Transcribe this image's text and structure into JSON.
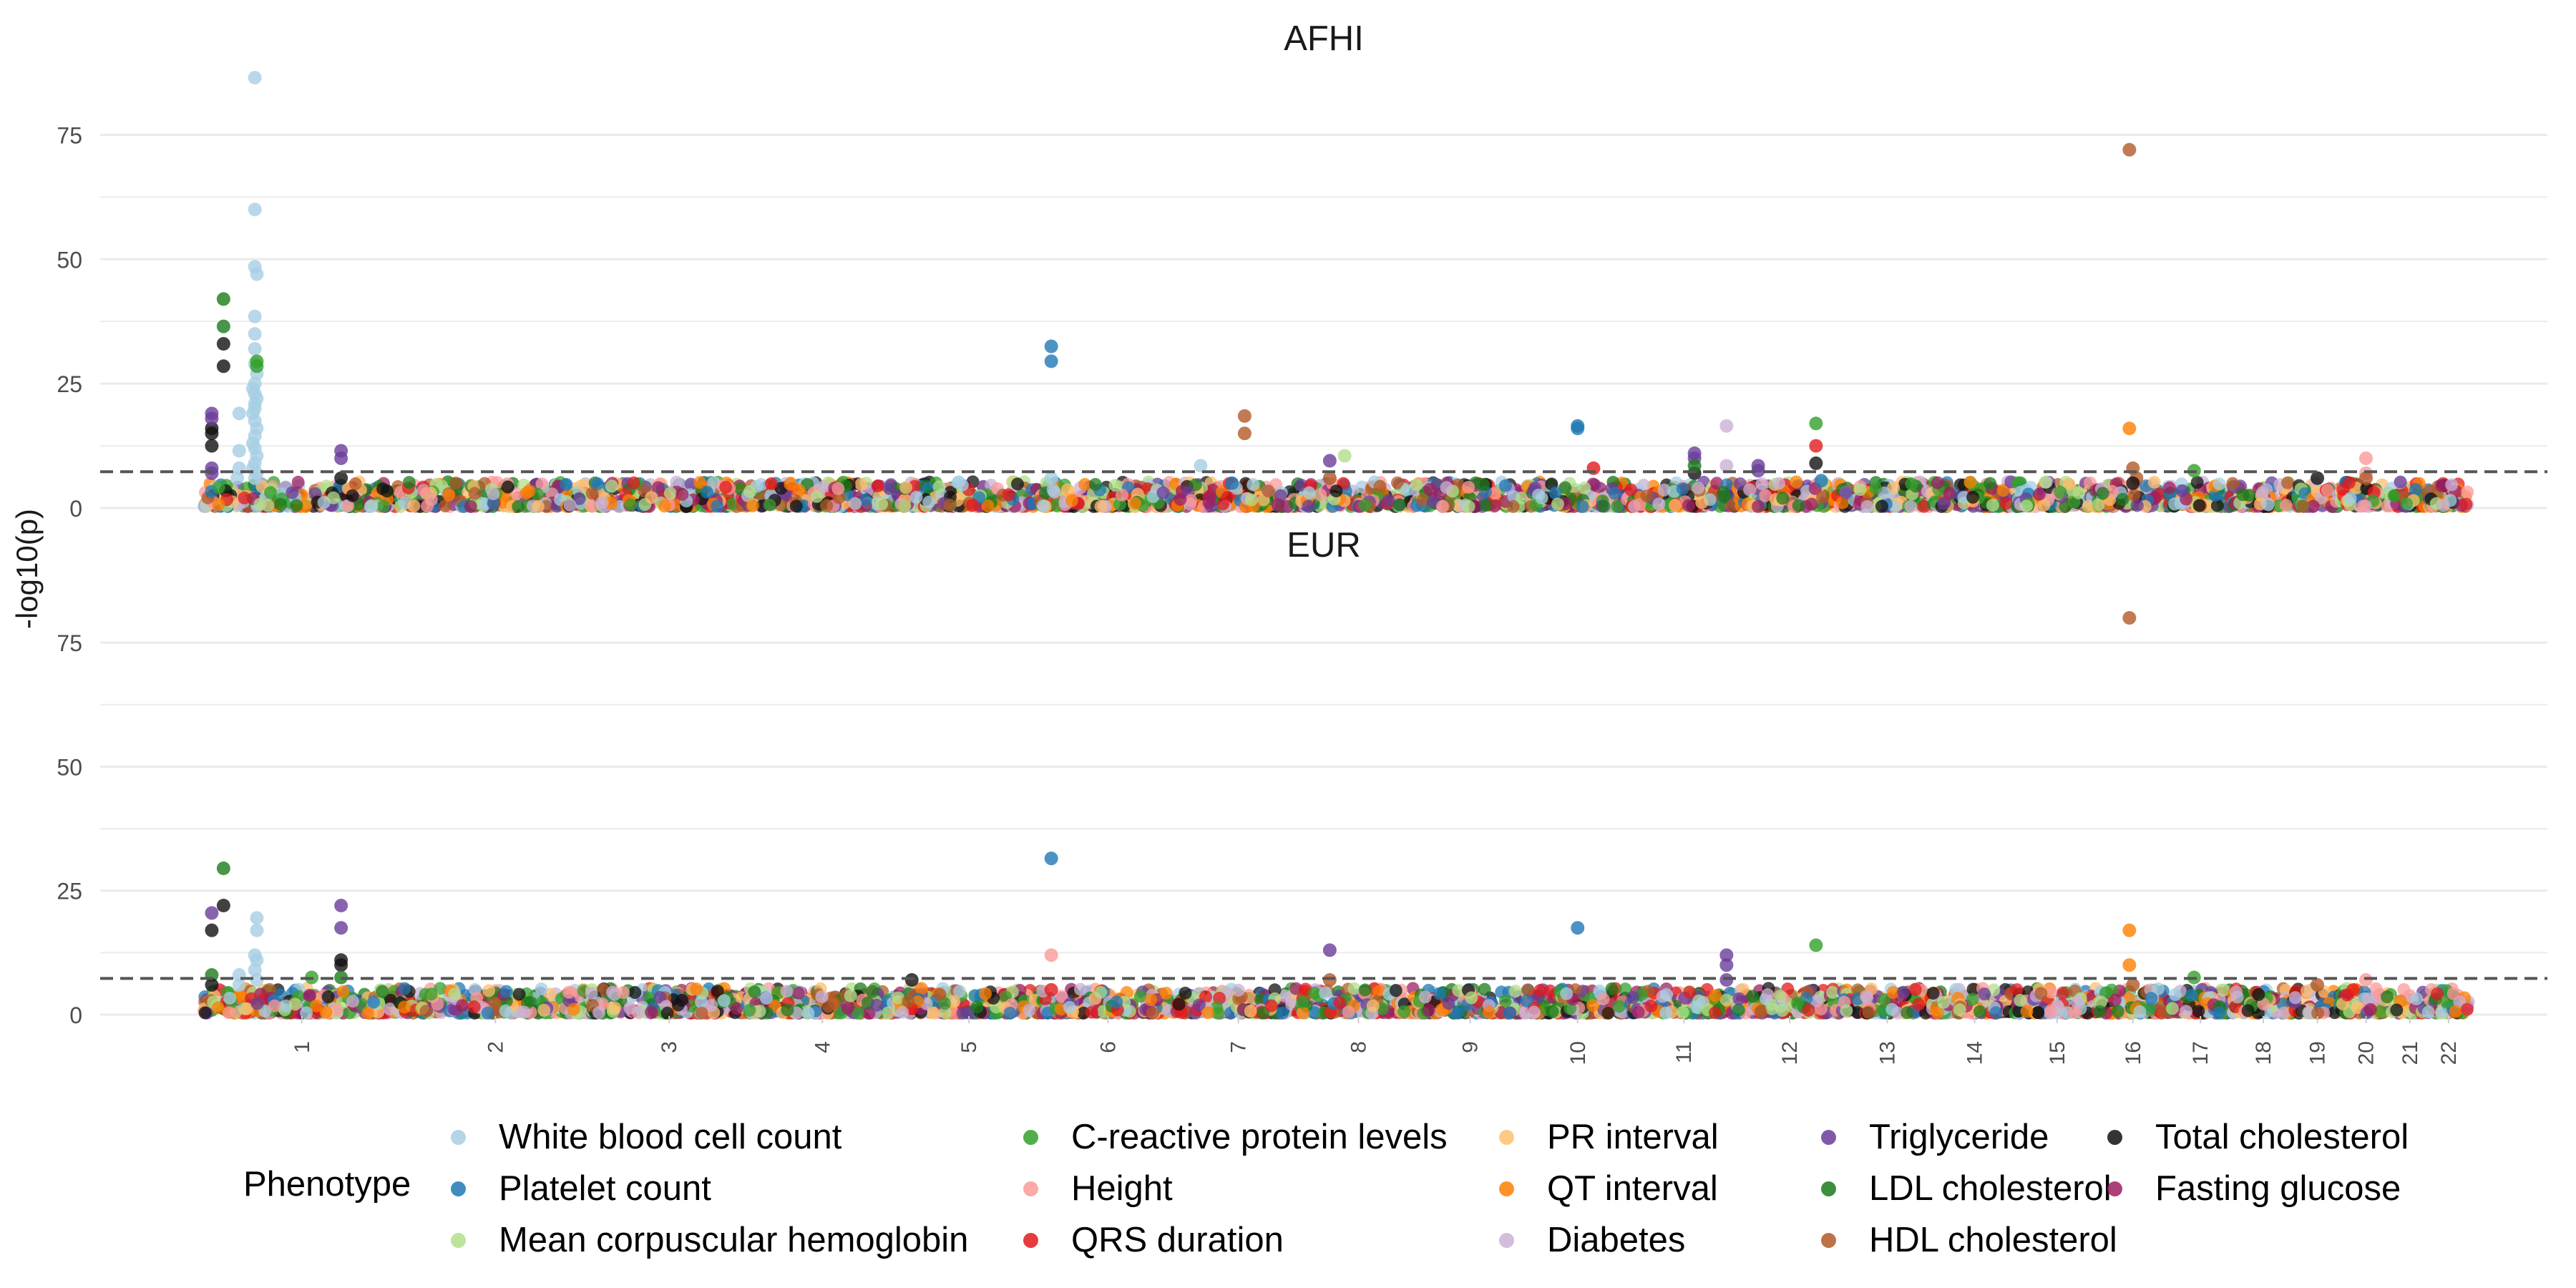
{
  "chart_data": {
    "type": "scatter",
    "ylabel": "-log10(p)",
    "panels": [
      "AFHI",
      "EUR"
    ],
    "y_ticks": [
      0,
      25,
      50,
      75
    ],
    "ylim": [
      0,
      87
    ],
    "significance_threshold": 7.3,
    "grid": true,
    "legend": {
      "title": "Phenotype",
      "placement": "bottom"
    },
    "chromosomes": [
      "1",
      "2",
      "3",
      "4",
      "5",
      "6",
      "7",
      "8",
      "9",
      "10",
      "11",
      "12",
      "13",
      "14",
      "15",
      "16",
      "17",
      "18",
      "19",
      "20",
      "21",
      "22"
    ],
    "chromosome_span": [
      [
        1,
        0.0,
        0.116
      ],
      [
        2,
        0.116,
        0.215
      ],
      [
        3,
        0.215,
        0.282
      ],
      [
        4,
        0.282,
        0.347
      ],
      [
        5,
        0.347,
        0.412
      ],
      [
        6,
        0.412,
        0.474
      ],
      [
        7,
        0.474,
        0.528
      ],
      [
        8,
        0.528,
        0.582
      ],
      [
        9,
        0.582,
        0.625
      ],
      [
        10,
        0.625,
        0.677
      ],
      [
        11,
        0.677,
        0.723
      ],
      [
        12,
        0.723,
        0.773
      ],
      [
        13,
        0.773,
        0.82
      ],
      [
        14,
        0.82,
        0.86
      ],
      [
        15,
        0.86,
        0.896
      ],
      [
        16,
        0.896,
        0.925
      ],
      [
        17,
        0.925,
        0.956
      ],
      [
        18,
        0.956,
        0.977
      ],
      [
        19,
        0.977,
        0.993
      ],
      [
        20,
        0.993,
        1.0
      ],
      [
        21,
        1.0,
        1.0
      ],
      [
        22,
        1.0,
        1.0
      ]
    ],
    "phenotypes": [
      {
        "name": "White blood cell count",
        "color": "#a6cee3"
      },
      {
        "name": "Platelet count",
        "color": "#1f78b4"
      },
      {
        "name": "Mean corpuscular hemoglobin",
        "color": "#b2df8a"
      },
      {
        "name": "C-reactive protein levels",
        "color": "#33a02c"
      },
      {
        "name": "Height",
        "color": "#fb9a99"
      },
      {
        "name": "QRS duration",
        "color": "#e31a1c"
      },
      {
        "name": "PR interval",
        "color": "#fdbf6f"
      },
      {
        "name": "QT interval",
        "color": "#ff7f00"
      },
      {
        "name": "Diabetes",
        "color": "#cab2d6"
      },
      {
        "name": "Triglyceride",
        "color": "#6a3d9a"
      },
      {
        "name": "LDL cholesterol",
        "color": "#1b7a1b"
      },
      {
        "name": "HDL cholesterol",
        "color": "#b15928"
      },
      {
        "name": "Total cholesterol",
        "color": "#111111"
      },
      {
        "name": "Fasting glucose",
        "color": "#9e1f63"
      }
    ],
    "series": [
      {
        "panel": "AFHI",
        "points": [
          [
            1,
            0.26,
            86.5,
            0
          ],
          [
            1,
            0.26,
            60,
            0
          ],
          [
            1,
            0.26,
            48.5,
            0
          ],
          [
            1,
            0.27,
            47,
            0
          ],
          [
            1,
            0.26,
            38.5,
            0
          ],
          [
            1,
            0.26,
            35,
            0
          ],
          [
            1,
            0.26,
            32,
            0
          ],
          [
            1,
            0.26,
            29,
            0
          ],
          [
            1,
            0.27,
            27,
            0
          ],
          [
            1,
            0.26,
            25,
            0
          ],
          [
            1,
            0.25,
            24,
            0
          ],
          [
            1,
            0.26,
            23,
            0
          ],
          [
            1,
            0.27,
            22,
            0
          ],
          [
            1,
            0.26,
            21,
            0
          ],
          [
            1,
            0.26,
            20,
            0
          ],
          [
            1,
            0.25,
            19,
            0
          ],
          [
            1,
            0.18,
            19,
            0
          ],
          [
            1,
            0.26,
            17.5,
            0
          ],
          [
            1,
            0.27,
            16,
            0
          ],
          [
            1,
            0.26,
            14.5,
            0
          ],
          [
            1,
            0.25,
            13,
            0
          ],
          [
            1,
            0.26,
            12,
            0
          ],
          [
            1,
            0.18,
            11.5,
            0
          ],
          [
            1,
            0.27,
            10.5,
            0
          ],
          [
            1,
            0.26,
            9,
            0
          ],
          [
            1,
            0.25,
            8,
            0
          ],
          [
            1,
            0.27,
            7,
            0
          ],
          [
            1,
            0.26,
            6,
            0
          ],
          [
            1,
            0.17,
            6,
            0
          ],
          [
            1,
            0.18,
            8,
            0
          ],
          [
            1,
            0.1,
            42,
            10
          ],
          [
            1,
            0.1,
            36.5,
            10
          ],
          [
            1,
            0.27,
            29.5,
            3
          ],
          [
            1,
            0.27,
            28.5,
            3
          ],
          [
            1,
            0.1,
            33,
            12
          ],
          [
            1,
            0.1,
            28.5,
            12
          ],
          [
            1,
            0.04,
            16,
            12
          ],
          [
            1,
            0.04,
            15,
            12
          ],
          [
            1,
            0.04,
            12.5,
            12
          ],
          [
            1,
            0.04,
            19,
            9
          ],
          [
            1,
            0.04,
            18,
            9
          ],
          [
            1,
            0.04,
            8,
            9
          ],
          [
            1,
            0.04,
            7,
            9
          ],
          [
            1,
            0.7,
            11.5,
            9
          ],
          [
            1,
            0.7,
            10,
            9
          ],
          [
            1,
            0.7,
            6,
            12
          ],
          [
            6,
            0.08,
            32.5,
            1
          ],
          [
            6,
            0.08,
            29.5,
            1
          ],
          [
            6,
            0.08,
            6,
            0
          ],
          [
            7,
            0.2,
            8.5,
            0
          ],
          [
            7,
            0.55,
            18.5,
            11
          ],
          [
            7,
            0.55,
            15,
            11
          ],
          [
            7,
            0.45,
            5,
            1
          ],
          [
            8,
            0.25,
            9.5,
            9
          ],
          [
            8,
            0.38,
            10.5,
            2
          ],
          [
            8,
            0.25,
            6,
            11
          ],
          [
            10,
            0.5,
            16.5,
            1
          ],
          [
            10,
            0.5,
            16,
            1
          ],
          [
            10,
            0.65,
            8,
            5
          ],
          [
            11,
            0.9,
            16.5,
            8
          ],
          [
            11,
            0.9,
            8.5,
            8
          ],
          [
            11,
            0.6,
            11,
            9
          ],
          [
            11,
            0.6,
            10,
            9
          ],
          [
            11,
            0.6,
            7,
            12
          ],
          [
            11,
            0.6,
            8.5,
            10
          ],
          [
            12,
            0.2,
            8.5,
            9
          ],
          [
            12,
            0.2,
            7.5,
            9
          ],
          [
            12,
            0.75,
            17,
            3
          ],
          [
            12,
            0.75,
            12.5,
            5
          ],
          [
            12,
            0.75,
            9,
            12
          ],
          [
            12,
            0.8,
            5.5,
            1
          ],
          [
            16,
            0.45,
            72,
            11
          ],
          [
            16,
            0.45,
            16,
            7
          ],
          [
            16,
            0.5,
            8,
            11
          ],
          [
            16,
            0.55,
            6,
            11
          ],
          [
            16,
            0.5,
            5,
            12
          ],
          [
            17,
            0.4,
            7.5,
            3
          ],
          [
            19,
            0.5,
            6,
            12
          ],
          [
            20,
            0.5,
            10,
            4
          ],
          [
            20,
            0.5,
            7,
            4
          ],
          [
            20,
            0.5,
            6,
            11
          ]
        ]
      },
      {
        "panel": "EUR",
        "points": [
          [
            1,
            0.27,
            19.5,
            0
          ],
          [
            1,
            0.27,
            17,
            0
          ],
          [
            1,
            0.26,
            12,
            0
          ],
          [
            1,
            0.27,
            11,
            0
          ],
          [
            1,
            0.26,
            9,
            0
          ],
          [
            1,
            0.18,
            8,
            0
          ],
          [
            1,
            0.18,
            6,
            0
          ],
          [
            1,
            0.27,
            7,
            0
          ],
          [
            1,
            0.1,
            29.5,
            10
          ],
          [
            1,
            0.1,
            22,
            12
          ],
          [
            1,
            0.04,
            17,
            12
          ],
          [
            1,
            0.04,
            20.5,
            9
          ],
          [
            1,
            0.04,
            8,
            10
          ],
          [
            1,
            0.04,
            6,
            12
          ],
          [
            1,
            0.7,
            22,
            9
          ],
          [
            1,
            0.7,
            17.5,
            9
          ],
          [
            1,
            0.7,
            11,
            12
          ],
          [
            1,
            0.7,
            10,
            12
          ],
          [
            1,
            0.55,
            7.5,
            3
          ],
          [
            1,
            0.7,
            7.5,
            10
          ],
          [
            5,
            0.1,
            7,
            12
          ],
          [
            6,
            0.08,
            31.5,
            1
          ],
          [
            6,
            0.08,
            12,
            4
          ],
          [
            6,
            0.08,
            5,
            5
          ],
          [
            8,
            0.25,
            13,
            9
          ],
          [
            8,
            0.25,
            7,
            11
          ],
          [
            10,
            0.5,
            17.5,
            1
          ],
          [
            11,
            0.9,
            12,
            9
          ],
          [
            11,
            0.9,
            10,
            9
          ],
          [
            11,
            0.9,
            7,
            9
          ],
          [
            12,
            0.75,
            14,
            3
          ],
          [
            16,
            0.45,
            80,
            11
          ],
          [
            16,
            0.45,
            17,
            7
          ],
          [
            16,
            0.45,
            10,
            7
          ],
          [
            16,
            0.5,
            6,
            11
          ],
          [
            17,
            0.4,
            7.5,
            3
          ],
          [
            19,
            0.5,
            6,
            11
          ],
          [
            20,
            0.5,
            7,
            4
          ]
        ]
      }
    ]
  }
}
